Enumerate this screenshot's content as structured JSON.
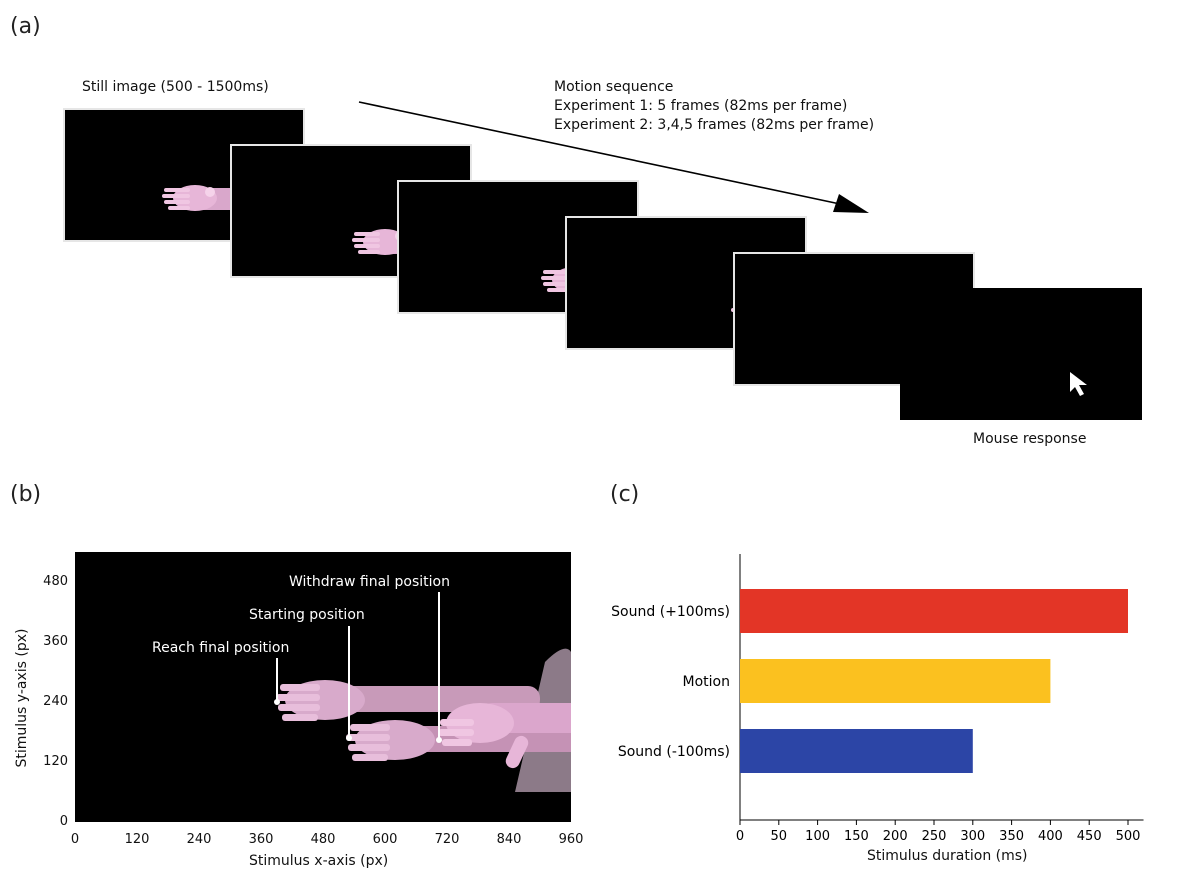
{
  "panel_a": {
    "letter": "(a)",
    "still_label": "Still image (500 - 1500ms)",
    "motion_lines": [
      "Motion sequence",
      "Experiment 1: 5 frames (82ms per frame)",
      "Experiment 2: 3,4,5 frames (82ms per frame)"
    ],
    "response_label": "Mouse response",
    "colors": {
      "frame_bg": "#000000",
      "hand": "#e7b6d8"
    }
  },
  "panel_b": {
    "letter": "(b)",
    "xlabel": "Stimulus x-axis (px)",
    "ylabel": "Stimulus y-axis (px)",
    "xticks": [
      "0",
      "120",
      "240",
      "360",
      "480",
      "600",
      "720",
      "840",
      "960"
    ],
    "yticks": [
      "0",
      "120",
      "240",
      "360",
      "480"
    ],
    "annotations": [
      {
        "label": "Reach final position",
        "x": 394,
        "y": 240
      },
      {
        "label": "Starting position",
        "x": 540,
        "y": 165
      },
      {
        "label": "Withdraw final position",
        "x": 710,
        "y": 150
      }
    ]
  },
  "chart_data": {
    "type": "bar",
    "orientation": "horizontal",
    "categories": [
      "Sound (+100ms)",
      "Motion",
      "Sound (-100ms)"
    ],
    "values": [
      500,
      400,
      300
    ],
    "colors": [
      "#e33526",
      "#fbc11f",
      "#2c45a6"
    ],
    "title": "",
    "xlabel": "Stimulus duration (ms)",
    "ylabel": "",
    "xlim": [
      0,
      520
    ],
    "xticks": [
      "0",
      "50",
      "100",
      "150",
      "200",
      "250",
      "300",
      "350",
      "400",
      "450",
      "500"
    ],
    "letter": "(c)"
  }
}
